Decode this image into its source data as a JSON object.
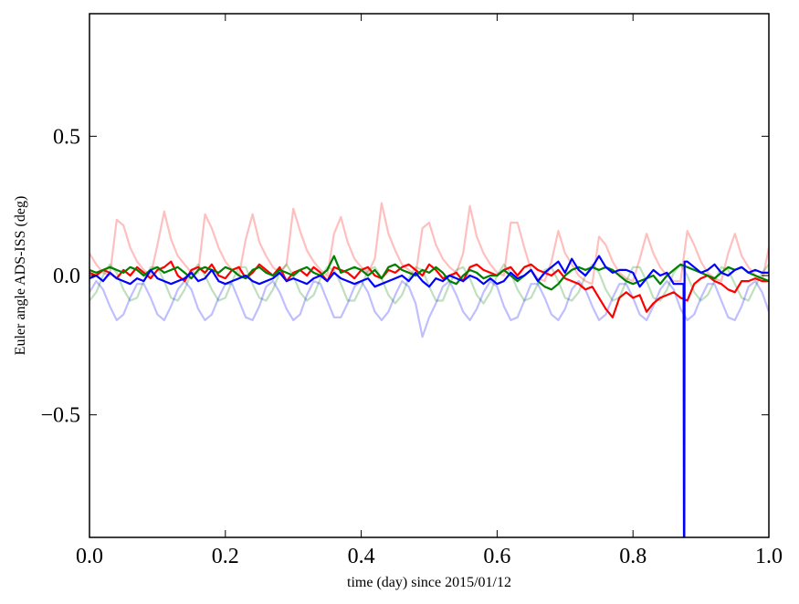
{
  "chart_data": {
    "type": "line",
    "title": "",
    "xlabel": "time (day) since 2015/01/12",
    "ylabel": "Euler angle ADS-ISS (deg)",
    "xlim": [
      0.0,
      1.0
    ],
    "ylim": [
      -0.94,
      0.94
    ],
    "grid": false,
    "legend": "none",
    "xticks": [
      0.0,
      0.2,
      0.4,
      0.6,
      0.8,
      1.0
    ],
    "xtick_labels": [
      "0.0",
      "0.2",
      "0.4",
      "0.6",
      "0.8",
      "1.0"
    ],
    "yticks": [
      0.5,
      0.0,
      -0.5
    ],
    "ytick_labels": [
      "0.5",
      "0.0",
      "−0.5"
    ],
    "series": [
      {
        "name": "faint-red",
        "color": "#ff0000",
        "opacity": 0.25,
        "x_start": 0.0,
        "x_step": 0.01,
        "y": [
          0.08,
          0.04,
          0.01,
          0.0,
          0.2,
          0.18,
          0.1,
          0.05,
          0.02,
          0.0,
          0.11,
          0.23,
          0.13,
          0.07,
          0.04,
          0.01,
          0.01,
          0.22,
          0.17,
          0.1,
          0.05,
          0.02,
          0.0,
          0.13,
          0.22,
          0.12,
          0.07,
          0.03,
          0.01,
          0.04,
          0.24,
          0.16,
          0.09,
          0.05,
          0.02,
          0.0,
          0.15,
          0.21,
          0.12,
          0.06,
          0.03,
          0.01,
          0.06,
          0.26,
          0.15,
          0.09,
          0.04,
          0.02,
          0.0,
          0.17,
          0.19,
          0.11,
          0.06,
          0.03,
          0.01,
          0.08,
          0.25,
          0.14,
          0.08,
          0.04,
          0.01,
          0.0,
          0.19,
          0.19,
          0.1,
          0.02,
          -0.01,
          -0.02,
          0.05,
          0.16,
          0.08,
          0.04,
          0.0,
          -0.02,
          -0.03,
          0.14,
          0.11,
          0.05,
          0.01,
          -0.01,
          -0.02,
          0.06,
          0.15,
          0.08,
          0.03,
          0.0,
          -0.02,
          -0.02,
          0.16,
          0.11,
          0.05,
          0.01,
          -0.01,
          -0.02,
          0.08,
          0.15,
          0.07,
          0.03,
          0.0,
          -0.02,
          0.1
        ]
      },
      {
        "name": "faint-green",
        "color": "#008000",
        "opacity": 0.25,
        "x_start": 0.0,
        "x_step": 0.01,
        "y": [
          -0.09,
          -0.06,
          0.0,
          0.04,
          0.01,
          -0.05,
          -0.09,
          -0.08,
          -0.02,
          0.03,
          0.03,
          -0.02,
          -0.08,
          -0.09,
          -0.05,
          0.01,
          0.04,
          0.0,
          -0.05,
          -0.09,
          -0.08,
          -0.02,
          0.03,
          0.03,
          -0.03,
          -0.08,
          -0.09,
          -0.05,
          0.01,
          0.04,
          0.0,
          -0.06,
          -0.09,
          -0.07,
          -0.01,
          0.03,
          0.02,
          -0.03,
          -0.09,
          -0.09,
          -0.04,
          0.02,
          0.03,
          -0.01,
          -0.07,
          -0.1,
          -0.07,
          -0.01,
          0.03,
          0.02,
          -0.04,
          -0.09,
          -0.09,
          -0.03,
          0.02,
          0.03,
          -0.01,
          -0.07,
          -0.1,
          -0.06,
          0.0,
          0.04,
          0.01,
          -0.05,
          -0.09,
          -0.08,
          -0.03,
          0.02,
          0.03,
          -0.02,
          -0.08,
          -0.09,
          -0.06,
          0.0,
          0.04,
          0.01,
          -0.05,
          -0.09,
          -0.08,
          -0.02,
          0.03,
          0.03,
          -0.02,
          -0.08,
          -0.09,
          -0.05,
          0.01,
          0.04,
          0.0,
          -0.06,
          -0.09,
          -0.07,
          -0.02,
          0.03,
          0.02,
          -0.03,
          -0.08,
          -0.09,
          -0.04,
          0.01,
          0.04
        ]
      },
      {
        "name": "faint-blue",
        "color": "#0000ff",
        "opacity": 0.25,
        "x_start": 0.0,
        "x_step": 0.01,
        "y": [
          -0.06,
          -0.02,
          -0.05,
          -0.11,
          -0.16,
          -0.14,
          -0.08,
          -0.03,
          -0.03,
          -0.08,
          -0.14,
          -0.16,
          -0.11,
          -0.05,
          -0.02,
          -0.05,
          -0.12,
          -0.16,
          -0.14,
          -0.08,
          -0.03,
          -0.03,
          -0.09,
          -0.15,
          -0.16,
          -0.11,
          -0.04,
          -0.02,
          -0.06,
          -0.12,
          -0.16,
          -0.14,
          -0.07,
          -0.02,
          -0.03,
          -0.09,
          -0.15,
          -0.15,
          -0.1,
          -0.04,
          -0.02,
          -0.06,
          -0.13,
          -0.16,
          -0.13,
          -0.07,
          -0.02,
          -0.04,
          -0.1,
          -0.22,
          -0.15,
          -0.1,
          -0.04,
          -0.02,
          -0.07,
          -0.13,
          -0.16,
          -0.12,
          -0.06,
          -0.02,
          -0.04,
          -0.11,
          -0.16,
          -0.15,
          -0.09,
          -0.03,
          -0.03,
          -0.08,
          -0.14,
          -0.16,
          -0.12,
          -0.05,
          -0.02,
          -0.05,
          -0.11,
          -0.16,
          -0.14,
          -0.08,
          -0.03,
          -0.03,
          -0.08,
          -0.14,
          -0.16,
          -0.11,
          -0.05,
          -0.02,
          -0.05,
          -0.12,
          -0.16,
          -0.14,
          -0.08,
          -0.03,
          -0.03,
          -0.09,
          -0.15,
          -0.16,
          -0.11,
          -0.04,
          -0.02,
          -0.06,
          -0.13
        ]
      },
      {
        "name": "red",
        "color": "#ff0000",
        "opacity": 1,
        "x_start": 0.0,
        "x_step": 0.01,
        "y": [
          0.01,
          0.0,
          0.02,
          0.01,
          -0.01,
          0.02,
          0.0,
          0.03,
          0.01,
          -0.01,
          0.02,
          0.03,
          0.05,
          0.0,
          -0.02,
          0.02,
          0.03,
          0.01,
          0.04,
          0.0,
          -0.01,
          0.02,
          0.03,
          -0.01,
          0.01,
          0.04,
          0.02,
          0.0,
          0.03,
          -0.02,
          0.01,
          0.02,
          0.0,
          0.03,
          0.01,
          -0.02,
          0.03,
          0.02,
          0.01,
          -0.01,
          0.02,
          0.03,
          0.0,
          -0.01,
          0.02,
          0.01,
          0.03,
          0.04,
          0.02,
          0.0,
          0.04,
          0.02,
          -0.01,
          0.0,
          0.01,
          -0.02,
          0.03,
          0.04,
          0.02,
          0.01,
          0.0,
          0.02,
          0.03,
          0.0,
          0.03,
          0.04,
          0.02,
          0.01,
          0.0,
          0.02,
          -0.01,
          -0.02,
          -0.03,
          -0.05,
          -0.04,
          -0.08,
          -0.12,
          -0.15,
          -0.08,
          -0.06,
          -0.08,
          -0.07,
          -0.13,
          -0.1,
          -0.08,
          -0.07,
          -0.06,
          -0.08,
          -0.09,
          -0.03,
          -0.01,
          0.0,
          -0.02,
          -0.03,
          -0.05,
          -0.06,
          -0.02,
          -0.02,
          -0.01,
          -0.02,
          -0.02
        ]
      },
      {
        "name": "green",
        "color": "#008000",
        "opacity": 1,
        "x_start": 0.0,
        "x_step": 0.01,
        "y": [
          0.02,
          0.01,
          0.02,
          0.03,
          0.02,
          0.01,
          0.03,
          0.02,
          0.0,
          0.02,
          0.03,
          0.01,
          0.02,
          0.03,
          0.01,
          -0.01,
          0.02,
          0.03,
          0.02,
          0.01,
          0.03,
          0.02,
          0.0,
          -0.01,
          0.02,
          0.03,
          0.01,
          0.0,
          0.02,
          0.01,
          0.0,
          0.02,
          0.03,
          0.01,
          0.0,
          0.02,
          0.07,
          0.01,
          0.02,
          0.03,
          0.02,
          0.0,
          0.02,
          -0.01,
          0.03,
          0.04,
          0.02,
          0.01,
          0.0,
          0.02,
          0.01,
          0.03,
          0.01,
          -0.02,
          -0.03,
          0.0,
          0.02,
          0.01,
          -0.01,
          0.0,
          0.0,
          0.02,
          0.0,
          -0.02,
          0.0,
          0.02,
          -0.02,
          -0.04,
          -0.05,
          -0.03,
          0.0,
          0.02,
          0.03,
          0.02,
          0.03,
          0.02,
          0.03,
          0.02,
          0.0,
          -0.02,
          -0.03,
          -0.02,
          -0.01,
          0.0,
          -0.03,
          0.0,
          0.02,
          0.04,
          0.03,
          0.02,
          0.01,
          0.0,
          -0.01,
          0.01,
          0.03,
          0.02,
          0.03,
          0.01,
          0.0,
          -0.01,
          -0.02
        ]
      },
      {
        "name": "blue",
        "color": "#0000ff",
        "opacity": 1,
        "x_start": 0.0,
        "x_step": 0.01,
        "y": [
          -0.01,
          0.0,
          -0.02,
          0.01,
          -0.01,
          -0.02,
          -0.03,
          -0.01,
          -0.02,
          0.02,
          -0.01,
          -0.02,
          -0.03,
          -0.02,
          -0.01,
          0.01,
          -0.02,
          -0.01,
          0.02,
          -0.02,
          -0.03,
          -0.02,
          -0.01,
          0.0,
          -0.02,
          -0.03,
          -0.02,
          -0.01,
          0.01,
          -0.02,
          -0.01,
          -0.02,
          -0.03,
          -0.01,
          0.0,
          -0.02,
          0.01,
          -0.01,
          -0.02,
          -0.03,
          -0.02,
          -0.01,
          -0.04,
          -0.03,
          -0.02,
          -0.01,
          0.0,
          -0.02,
          0.01,
          -0.02,
          -0.04,
          -0.01,
          -0.02,
          0.0,
          -0.01,
          -0.02,
          0.0,
          -0.01,
          -0.03,
          -0.01,
          -0.03,
          -0.02,
          0.01,
          -0.01,
          0.0,
          0.02,
          -0.02,
          0.01,
          0.03,
          0.05,
          0.01,
          0.06,
          0.02,
          0.0,
          0.03,
          0.07,
          0.03,
          0.01,
          0.02,
          0.02,
          0.01,
          -0.04,
          -0.01,
          0.02,
          0.0,
          0.01,
          -0.03,
          -0.03,
          0.05,
          0.03,
          0.01,
          0.02,
          0.04,
          0.01,
          0.0,
          0.02,
          0.03,
          0.01,
          0.02,
          0.01,
          0.01
        ],
        "spike": {
          "x": 0.875,
          "y": -0.94
        }
      }
    ]
  }
}
